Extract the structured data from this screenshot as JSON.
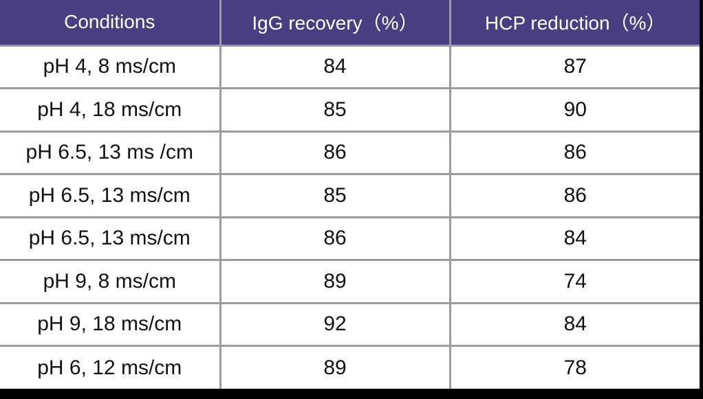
{
  "colors": {
    "header_bg": "#4a3d82",
    "grid_line": "#9b9b9b",
    "header_text": "#ffffff",
    "body_text": "#111111",
    "page_bg": "#000000"
  },
  "chart_data": {
    "type": "table",
    "title": "",
    "columns": [
      "Conditions",
      "IgG recovery（%）",
      "HCP reduction（%）"
    ],
    "rows": [
      {
        "condition": "pH 4, 8 ms/cm",
        "igg_recovery": "84",
        "hcp_reduction": "87"
      },
      {
        "condition": "pH 4, 18 ms/cm",
        "igg_recovery": "85",
        "hcp_reduction": "90"
      },
      {
        "condition": "pH 6.5, 13 ms /cm",
        "igg_recovery": "86",
        "hcp_reduction": "86"
      },
      {
        "condition": "pH 6.5, 13 ms/cm",
        "igg_recovery": "85",
        "hcp_reduction": "86"
      },
      {
        "condition": "pH 6.5, 13 ms/cm",
        "igg_recovery": "86",
        "hcp_reduction": "84"
      },
      {
        "condition": "pH 9, 8 ms/cm",
        "igg_recovery": "89",
        "hcp_reduction": "74"
      },
      {
        "condition": "pH 9, 18 ms/cm",
        "igg_recovery": "92",
        "hcp_reduction": "84"
      },
      {
        "condition": "pH 6, 12 ms/cm",
        "igg_recovery": "89",
        "hcp_reduction": "78"
      }
    ]
  }
}
